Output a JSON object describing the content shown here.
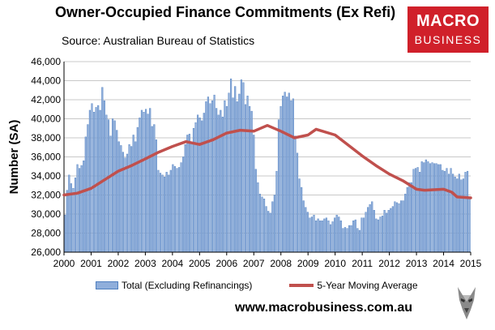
{
  "title": "Owner-Occupied Finance Commitments (Ex Refi)",
  "source": "Source: Australian  Bureau of Statistics",
  "logo": {
    "line1": "MACRO",
    "line2": "BUSINESS",
    "color": "#d0202a"
  },
  "url": "www.macrobusiness.com.au",
  "chart_data": {
    "type": "bar",
    "ylabel": "Number (SA)",
    "xlabel": "",
    "ylim": [
      26000,
      46000
    ],
    "yticks": [
      26000,
      28000,
      30000,
      32000,
      34000,
      36000,
      38000,
      40000,
      42000,
      44000,
      46000
    ],
    "ytick_labels": [
      "26,000",
      "28,000",
      "30,000",
      "32,000",
      "34,000",
      "36,000",
      "38,000",
      "40,000",
      "42,000",
      "44,000",
      "46,000"
    ],
    "x_tick_labels": [
      "2000",
      "2001",
      "2002",
      "2003",
      "2004",
      "2005",
      "2006",
      "2007",
      "2008",
      "2009",
      "2010",
      "2011",
      "2012",
      "2013",
      "2014",
      "2015"
    ],
    "x_start_year": 2000,
    "grid": true,
    "legend_position": "bottom",
    "series": [
      {
        "name": "Total (Excluding Refinancings)",
        "kind": "bar",
        "color": "#8faedb",
        "values": [
          29900,
          32500,
          34100,
          33200,
          32700,
          33800,
          35200,
          34800,
          35100,
          35600,
          38100,
          39400,
          40900,
          41600,
          40700,
          41200,
          41400,
          40900,
          43300,
          41900,
          40400,
          39900,
          38200,
          40000,
          39800,
          38800,
          37600,
          37200,
          36500,
          35900,
          36300,
          37300,
          37100,
          38300,
          37600,
          39100,
          40100,
          40900,
          40700,
          41000,
          40500,
          41100,
          39200,
          39400,
          37800,
          34600,
          34300,
          34100,
          33900,
          34400,
          34100,
          34600,
          35200,
          35000,
          34800,
          34900,
          35400,
          36000,
          37300,
          38300,
          38400,
          37500,
          39000,
          39600,
          40400,
          40100,
          39800,
          40600,
          41800,
          42300,
          41600,
          41900,
          42500,
          41100,
          40400,
          40900,
          40200,
          41900,
          41300,
          42700,
          44200,
          42200,
          43400,
          41800,
          42600,
          44100,
          43800,
          41500,
          42400,
          41300,
          40800,
          38300,
          34700,
          33300,
          32100,
          31800,
          31600,
          30800,
          30300,
          30100,
          31300,
          32000,
          34500,
          39900,
          41300,
          42400,
          42800,
          42300,
          42700,
          41900,
          42100,
          38200,
          36400,
          33700,
          32800,
          31400,
          30700,
          30200,
          29600,
          29700,
          29900,
          29300,
          29500,
          29300,
          29300,
          29500,
          29600,
          29300,
          28900,
          29200,
          29600,
          29900,
          29700,
          29300,
          28500,
          28600,
          28500,
          28800,
          28800,
          29300,
          29400,
          28500,
          28300,
          29600,
          29600,
          30200,
          30700,
          31000,
          31300,
          30400,
          29500,
          29400,
          29700,
          29800,
          30400,
          30100,
          30400,
          30600,
          30800,
          31300,
          31200,
          31100,
          31400,
          31400,
          32100,
          32800,
          33300,
          33300,
          34700,
          34800,
          34900,
          34400,
          35500,
          35400,
          35700,
          35500,
          35300,
          35400,
          35300,
          35300,
          35200,
          35200,
          34600,
          34500,
          34800,
          34200,
          34800,
          34200,
          33900,
          33700,
          34200,
          33600,
          33700,
          34400,
          34500,
          31700
        ]
      },
      {
        "name": "5-Year Moving Average",
        "kind": "line",
        "color": "#c0504d",
        "points": [
          [
            2000.0,
            32000
          ],
          [
            2000.5,
            32200
          ],
          [
            2001.0,
            32700
          ],
          [
            2001.5,
            33600
          ],
          [
            2002.0,
            34500
          ],
          [
            2002.5,
            35100
          ],
          [
            2003.0,
            35800
          ],
          [
            2003.5,
            36500
          ],
          [
            2004.0,
            37100
          ],
          [
            2004.5,
            37600
          ],
          [
            2005.0,
            37300
          ],
          [
            2005.5,
            37800
          ],
          [
            2006.0,
            38500
          ],
          [
            2006.5,
            38800
          ],
          [
            2007.0,
            38700
          ],
          [
            2007.5,
            39300
          ],
          [
            2008.0,
            38700
          ],
          [
            2008.5,
            38000
          ],
          [
            2009.0,
            38300
          ],
          [
            2009.3,
            38900
          ],
          [
            2010.0,
            38300
          ],
          [
            2010.5,
            37200
          ],
          [
            2011.0,
            36100
          ],
          [
            2011.5,
            35100
          ],
          [
            2012.0,
            34200
          ],
          [
            2012.5,
            33500
          ],
          [
            2013.0,
            32600
          ],
          [
            2013.3,
            32500
          ],
          [
            2014.0,
            32600
          ],
          [
            2014.3,
            32300
          ],
          [
            2014.5,
            31800
          ],
          [
            2015.0,
            31700
          ]
        ]
      }
    ]
  }
}
